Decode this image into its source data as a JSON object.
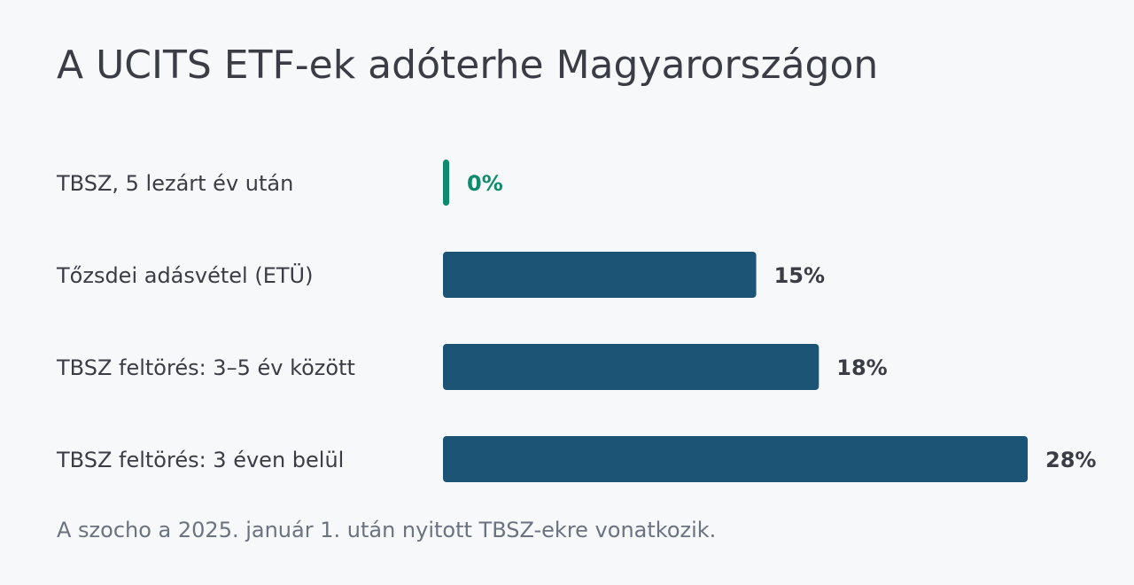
{
  "chart_data": {
    "type": "bar",
    "orientation": "horizontal",
    "title": "A UCITS ETF-ek adóterhe Magyarországon",
    "categories": [
      "TBSZ, 5 lezárt év után",
      "Tőzsdei adásvétel (ETÜ)",
      "TBSZ feltörés: 3–5 év között",
      "TBSZ feltörés: 3 éven belül"
    ],
    "values": [
      0,
      15,
      18,
      28
    ],
    "value_labels": [
      "0%",
      "15%",
      "18%",
      "28%"
    ],
    "colors": [
      "#0e8a6c",
      "#1b5474",
      "#1b5474",
      "#1b5474"
    ],
    "label_colors": [
      "#0e8a6c",
      "#3a3d45",
      "#3a3d45",
      "#3a3d45"
    ],
    "xlim": [
      0,
      28
    ],
    "footnote": "A szocho a 2025. január 1. után nyitott TBSZ-ekre vonatkozik."
  }
}
